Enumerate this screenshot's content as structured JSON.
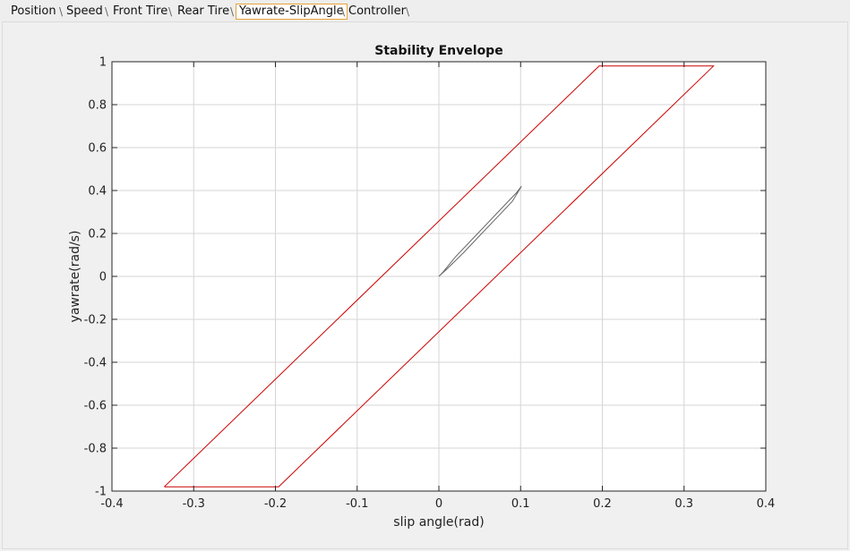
{
  "tabs": [
    {
      "label": "Position",
      "active": false
    },
    {
      "label": "Speed",
      "active": false
    },
    {
      "label": "Front Tire",
      "active": false
    },
    {
      "label": "Rear Tire",
      "active": false
    },
    {
      "label": "Yawrate-SlipAngle",
      "active": true
    },
    {
      "label": "Controller",
      "active": false
    }
  ],
  "colors": {
    "envelope": "#cc0000",
    "trajectory": "#666666",
    "grid": "#d6d6d6",
    "active_tab_border": "#e8a13a"
  },
  "chart_data": {
    "type": "line",
    "title": "Stability Envelope",
    "xlabel": "slip angle(rad)",
    "ylabel": "yawrate(rad/s)",
    "xlim": [
      -0.4,
      0.4
    ],
    "ylim": [
      -1,
      1
    ],
    "xticks": [
      -0.4,
      -0.3,
      -0.2,
      -0.1,
      0,
      0.1,
      0.2,
      0.3,
      0.4
    ],
    "xtick_labels": [
      "-0.4",
      "-0.3",
      "-0.2",
      "-0.1",
      "0",
      "0.1",
      "0.2",
      "0.3",
      "0.4"
    ],
    "yticks": [
      1,
      0.8,
      0.6,
      0.4,
      0.2,
      0,
      -0.2,
      -0.4,
      -0.6,
      -0.8,
      -1
    ],
    "ytick_labels": [
      "1",
      "0.8",
      "0.6",
      "0.4",
      "0.2",
      "0",
      "-0.2",
      "-0.4",
      "-0.6",
      "-0.8",
      "-1"
    ],
    "grid": true,
    "series": [
      {
        "color": "#cc0000",
        "points": [
          [
            -0.336,
            -0.98
          ],
          [
            -0.196,
            -0.98
          ],
          [
            0.336,
            0.98
          ],
          [
            0.196,
            0.98
          ],
          [
            -0.336,
            -0.98
          ]
        ]
      },
      {
        "color": "#666666",
        "points": [
          [
            0.0,
            0.0
          ],
          [
            0.01,
            0.035
          ],
          [
            0.03,
            0.11
          ],
          [
            0.05,
            0.19
          ],
          [
            0.07,
            0.27
          ],
          [
            0.09,
            0.35
          ],
          [
            0.101,
            0.42
          ],
          [
            0.095,
            0.39
          ],
          [
            0.07,
            0.29
          ],
          [
            0.045,
            0.19
          ],
          [
            0.02,
            0.09
          ],
          [
            0.005,
            0.02
          ],
          [
            0.0,
            0.0
          ]
        ]
      }
    ]
  }
}
